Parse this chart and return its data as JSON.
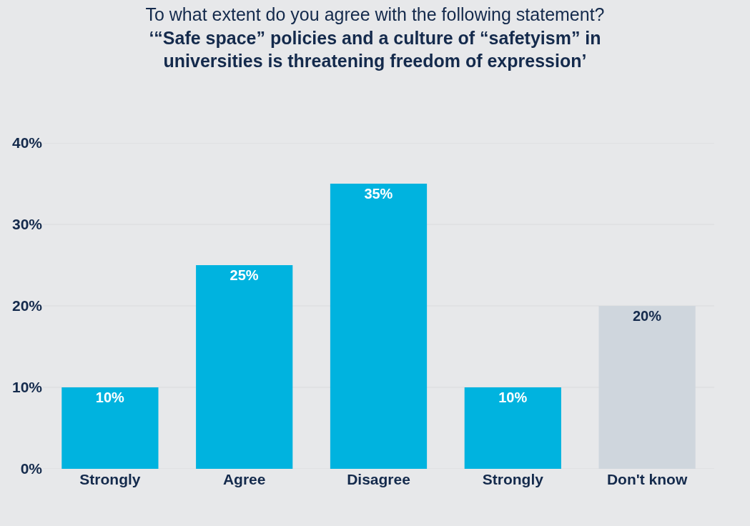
{
  "chart_data": {
    "type": "bar",
    "title": "To what extent do you agree with the following statement?",
    "subtitle": "‘“Safe space” policies and a culture of “safetyism” in universities is threatening freedom of expression’",
    "categories": [
      "Strongly",
      "Agree",
      "Disagree",
      "Strongly",
      "Don't know"
    ],
    "values": [
      10,
      25,
      35,
      10,
      20
    ],
    "colors": [
      "#00b3df",
      "#00b3df",
      "#00b3df",
      "#00b3df",
      "#cfd6dd"
    ],
    "value_labels": [
      "10%",
      "25%",
      "35%",
      "10%",
      "20%"
    ],
    "ylim": [
      0,
      40
    ],
    "yticks": [
      {
        "value": 0,
        "label": "0%"
      },
      {
        "value": 10,
        "label": "10%"
      },
      {
        "value": 20,
        "label": "20%"
      },
      {
        "value": 30,
        "label": "30%"
      },
      {
        "value": 40,
        "label": "40%"
      }
    ],
    "grid": "y"
  }
}
